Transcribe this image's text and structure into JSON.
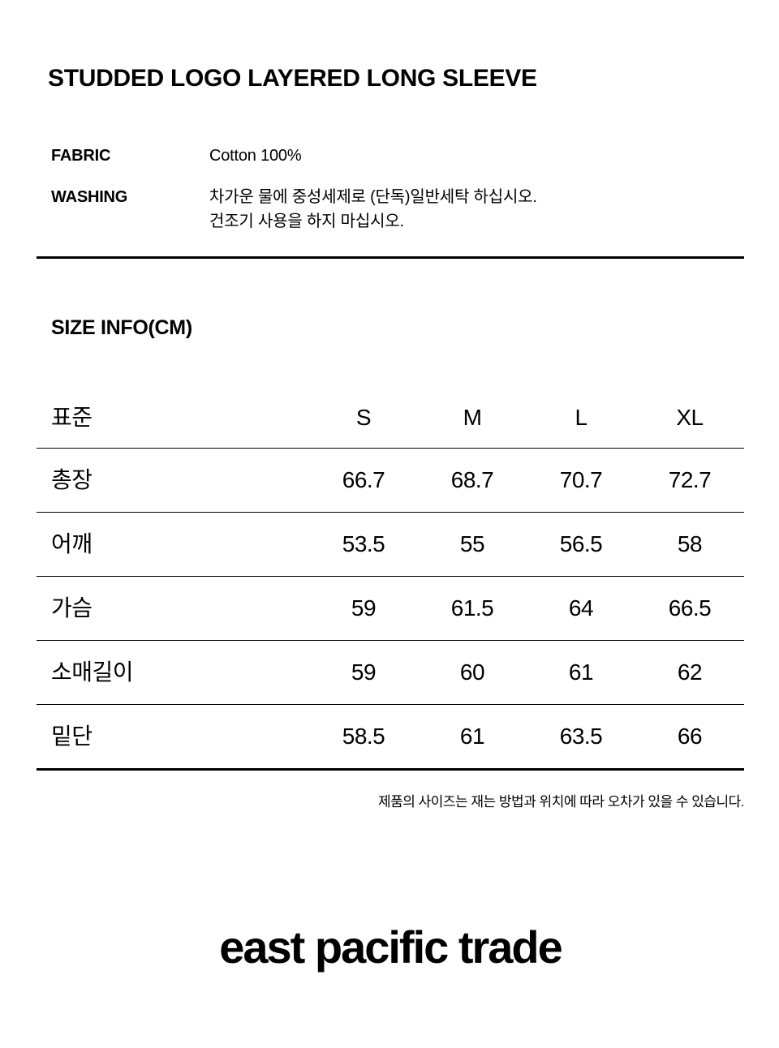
{
  "page": {
    "title": "STUDDED LOGO LAYERED LONG SLEEVE",
    "specs": [
      {
        "label": "FABRIC",
        "lines": [
          "Cotton 100%"
        ]
      },
      {
        "label": "WASHING",
        "lines": [
          "차가운 물에 중성세제로 (단독)일반세탁 하십시오.",
          "건조기 사용을 하지 마십시오."
        ]
      }
    ],
    "size_section": {
      "heading": "SIZE INFO(CM)",
      "note": "제품의 사이즈는 재는 방법과 위치에 따라 오차가 있을 수 있습니다."
    },
    "logo_text": "east pacific trade",
    "colors": {
      "text": "#000000",
      "background": "#ffffff",
      "rule": "#000000"
    }
  },
  "chart_data": {
    "type": "table",
    "title": "SIZE INFO(CM)",
    "columns": [
      "표준",
      "S",
      "M",
      "L",
      "XL"
    ],
    "rows": [
      {
        "label": "총장",
        "values": [
          "66.7",
          "68.7",
          "70.7",
          "72.7"
        ]
      },
      {
        "label": "어깨",
        "values": [
          "53.5",
          "55",
          "56.5",
          "58"
        ]
      },
      {
        "label": "가슴",
        "values": [
          "59",
          "61.5",
          "64",
          "66.5"
        ]
      },
      {
        "label": "소매길이",
        "values": [
          "59",
          "60",
          "61",
          "62"
        ]
      },
      {
        "label": "밑단",
        "values": [
          "58.5",
          "61",
          "63.5",
          "66"
        ]
      }
    ]
  }
}
